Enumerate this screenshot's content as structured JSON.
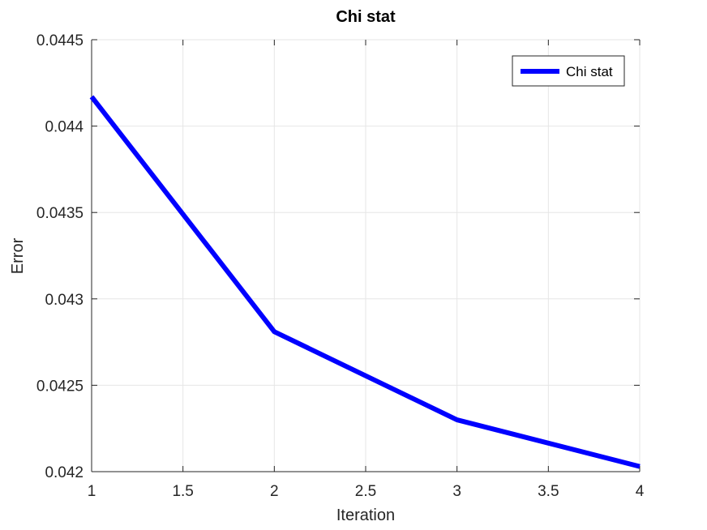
{
  "chart_data": {
    "type": "line",
    "title": "Chi stat",
    "xlabel": "Iteration",
    "ylabel": "Error",
    "xlim": [
      1,
      4
    ],
    "ylim": [
      0.042,
      0.0445
    ],
    "xticks": [
      1,
      1.5,
      2,
      2.5,
      3,
      3.5,
      4
    ],
    "xtick_labels": [
      "1",
      "1.5",
      "2",
      "2.5",
      "3",
      "3.5",
      "4"
    ],
    "yticks": [
      0.042,
      0.0425,
      0.043,
      0.0435,
      0.044,
      0.0445
    ],
    "ytick_labels": [
      "0.042",
      "0.0425",
      "0.043",
      "0.0435",
      "0.044",
      "0.0445"
    ],
    "grid": true,
    "legend_position": "top-right",
    "series": [
      {
        "name": "Chi stat",
        "color": "#0000ff",
        "x": [
          1,
          2,
          3,
          4
        ],
        "y": [
          0.04417,
          0.04281,
          0.0423,
          0.04203
        ]
      }
    ]
  },
  "colors": {
    "grid": "#e6e6e6",
    "axis": "#262626",
    "background": "#ffffff"
  }
}
